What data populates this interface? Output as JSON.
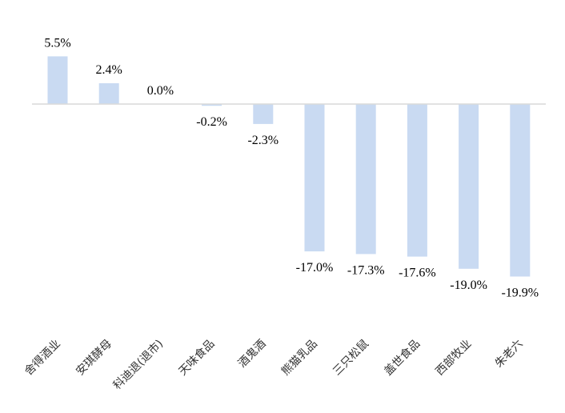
{
  "chart_data": {
    "type": "bar",
    "title": "",
    "xlabel": "",
    "ylabel": "",
    "ylim": [
      -25,
      7
    ],
    "grid": false,
    "legend": "none",
    "bar_color": "#c9daf2",
    "axis_color": "#d9d9d9",
    "categories": [
      "舍得酒业",
      "安琪酵母",
      "科迪退(退市)",
      "天味食品",
      "酒鬼酒",
      "熊猫乳品",
      "三只松鼠",
      "盖世食品",
      "西部牧业",
      "朱老六"
    ],
    "values": [
      5.5,
      2.4,
      0.0,
      -0.2,
      -2.3,
      -17.0,
      -17.3,
      -17.6,
      -19.0,
      -19.9
    ],
    "value_labels": [
      "5.5%",
      "2.4%",
      "0.0%",
      "-0.2%",
      "-2.3%",
      "-17.0%",
      "-17.3%",
      "-17.6%",
      "-19.0%",
      "-19.9%"
    ]
  }
}
